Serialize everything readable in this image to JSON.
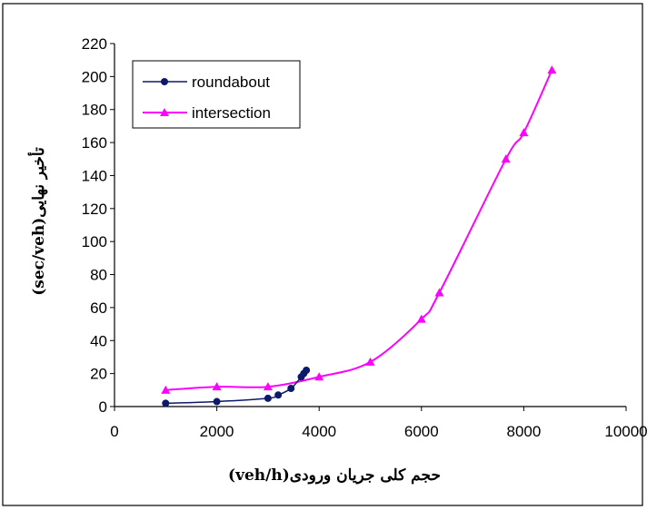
{
  "chart_data": {
    "type": "line",
    "xlabel": "حجم کلی جریان ورودی(veh/h)",
    "ylabel": "تأخیر نهایی(sec/veh)",
    "xlim": [
      0,
      10000
    ],
    "ylim": [
      0,
      220
    ],
    "x_ticks": [
      "0",
      "2000",
      "4000",
      "6000",
      "8000",
      "10000"
    ],
    "y_ticks": [
      "0",
      "20",
      "40",
      "60",
      "80",
      "100",
      "120",
      "140",
      "160",
      "180",
      "200",
      "220"
    ],
    "grid": false,
    "legend_position": "top-left",
    "series": [
      {
        "name": "roundabout",
        "color": "#0b1a6b",
        "marker": "circle",
        "x": [
          1000,
          2000,
          3000,
          3200,
          3450,
          3650,
          3700,
          3750
        ],
        "y": [
          2,
          3,
          5,
          7,
          11,
          18,
          20,
          22
        ]
      },
      {
        "name": "intersection",
        "color": "#ff00ff",
        "marker": "triangle",
        "x": [
          1000,
          2000,
          3000,
          4000,
          5000,
          6000,
          6350,
          7650,
          8000,
          8550
        ],
        "y": [
          10,
          12,
          12,
          18,
          27,
          53,
          69,
          150,
          166,
          204
        ]
      }
    ]
  }
}
